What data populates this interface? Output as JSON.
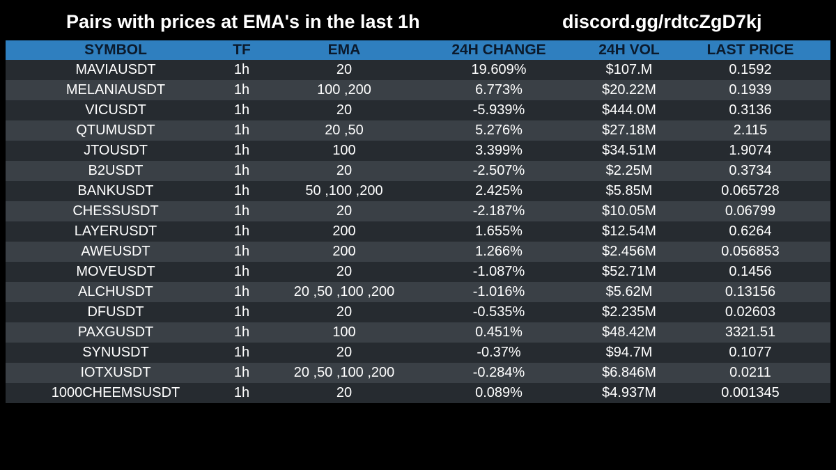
{
  "header": {
    "title": "Pairs with prices at EMA's in the last 1h",
    "discord": "discord.gg/rdtcZgD7kj"
  },
  "table": {
    "columns": [
      "SYMBOL",
      "TF",
      "EMA",
      "24H CHANGE",
      "24H VOL",
      "LAST PRICE"
    ],
    "rows": [
      [
        "MAVIAUSDT",
        "1h",
        "20",
        "19.609%",
        "$107.M",
        "0.1592"
      ],
      [
        "MELANIAUSDT",
        "1h",
        "100 ,200",
        "6.773%",
        "$20.22M",
        "0.1939"
      ],
      [
        "VICUSDT",
        "1h",
        "20",
        "-5.939%",
        "$444.0M",
        "0.3136"
      ],
      [
        "QTUMUSDT",
        "1h",
        "20 ,50",
        "5.276%",
        "$27.18M",
        "2.115"
      ],
      [
        "JTOUSDT",
        "1h",
        "100",
        "3.399%",
        "$34.51M",
        "1.9074"
      ],
      [
        "B2USDT",
        "1h",
        "20",
        "-2.507%",
        "$2.25M",
        "0.3734"
      ],
      [
        "BANKUSDT",
        "1h",
        "50 ,100 ,200",
        "2.425%",
        "$5.85M",
        "0.065728"
      ],
      [
        "CHESSUSDT",
        "1h",
        "20",
        "-2.187%",
        "$10.05M",
        "0.06799"
      ],
      [
        "LAYERUSDT",
        "1h",
        "200",
        "1.655%",
        "$12.54M",
        "0.6264"
      ],
      [
        "AWEUSDT",
        "1h",
        "200",
        "1.266%",
        "$2.456M",
        "0.056853"
      ],
      [
        "MOVEUSDT",
        "1h",
        "20",
        "-1.087%",
        "$52.71M",
        "0.1456"
      ],
      [
        "ALCHUSDT",
        "1h",
        "20 ,50 ,100 ,200",
        "-1.016%",
        "$5.62M",
        "0.13156"
      ],
      [
        "DFUSDT",
        "1h",
        "20",
        "-0.535%",
        "$2.235M",
        "0.02603"
      ],
      [
        "PAXGUSDT",
        "1h",
        "100",
        "0.451%",
        "$48.42M",
        "3321.51"
      ],
      [
        "SYNUSDT",
        "1h",
        "20",
        "-0.37%",
        "$94.7M",
        "0.1077"
      ],
      [
        "IOTXUSDT",
        "1h",
        "20 ,50 ,100 ,200",
        "-0.284%",
        "$6.846M",
        "0.0211"
      ],
      [
        "1000CHEEMSUSDT",
        "1h",
        "20",
        "0.089%",
        "$4.937M",
        "0.001345"
      ]
    ]
  },
  "colors": {
    "background": "#000000",
    "header_row": "#2f7fbf",
    "row_dark": "#262b30",
    "row_light": "#3a4046",
    "text": "#ffffff"
  }
}
